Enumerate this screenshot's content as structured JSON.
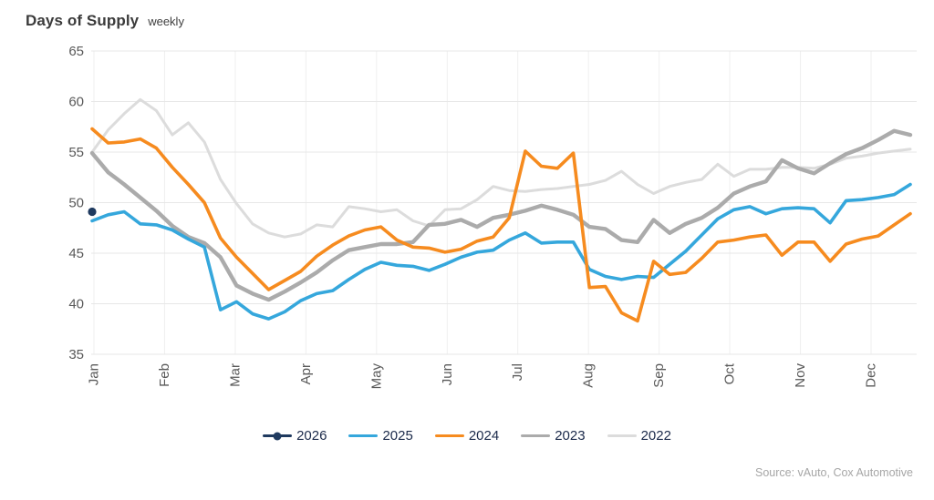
{
  "header": {
    "title": "Days of Supply",
    "subtitle": "weekly"
  },
  "source": "Source: vAuto, Cox Automotive",
  "chart_data": {
    "type": "line",
    "title": "Days of Supply",
    "subtitle": "weekly",
    "x_unit": "weeks",
    "weeks": 52,
    "x_axis": {
      "tick_labels": [
        "Jan",
        "Feb",
        "Mar",
        "Apr",
        "May",
        "Jun",
        "Jul",
        "Aug",
        "Sep",
        "Oct",
        "Nov",
        "Dec"
      ]
    },
    "y_axis": {
      "min": 35,
      "max": 65,
      "ticks": [
        65,
        60,
        55,
        50,
        45,
        40,
        35
      ]
    },
    "grid": {
      "horizontal": true,
      "vertical": true
    },
    "legend": {
      "position": "bottom",
      "labels": [
        "2026",
        "2025",
        "2024",
        "2023",
        "2022"
      ]
    },
    "series": [
      {
        "name": "2026",
        "color": "#1f3a5f",
        "marker": "circle",
        "values": [
          49.1
        ]
      },
      {
        "name": "2025",
        "color": "#35a7dc",
        "marker": "none",
        "values": [
          48.2,
          48.8,
          49.1,
          47.9,
          47.8,
          47.3,
          46.4,
          45.6,
          39.4,
          40.2,
          39.0,
          38.5,
          39.2,
          40.3,
          41.0,
          41.3,
          42.4,
          43.4,
          44.1,
          43.8,
          43.7,
          43.3,
          43.9,
          44.6,
          45.1,
          45.3,
          46.3,
          47.0,
          46.0,
          46.1,
          46.1,
          43.4,
          42.7,
          42.4,
          42.7,
          42.6,
          43.9,
          45.2,
          46.8,
          48.4,
          49.3,
          49.6,
          48.9,
          49.4,
          49.5,
          49.4,
          48.0,
          50.2,
          50.3,
          50.5,
          50.8,
          51.8
        ]
      },
      {
        "name": "2024",
        "color": "#f68b1f",
        "marker": "none",
        "values": [
          57.3,
          55.9,
          56.0,
          56.3,
          55.4,
          53.5,
          51.8,
          50.0,
          46.5,
          44.6,
          43.0,
          41.4,
          42.3,
          43.2,
          44.7,
          45.8,
          46.7,
          47.3,
          47.6,
          46.3,
          45.6,
          45.5,
          45.1,
          45.4,
          46.2,
          46.6,
          48.5,
          55.1,
          53.6,
          53.4,
          54.9,
          41.6,
          41.7,
          39.1,
          38.3,
          44.2,
          42.9,
          43.1,
          44.5,
          46.1,
          46.3,
          46.6,
          46.8,
          44.8,
          46.1,
          46.1,
          44.2,
          45.9,
          46.4,
          46.7,
          47.8,
          48.9
        ]
      },
      {
        "name": "2023",
        "color": "#ababab",
        "marker": "none",
        "values": [
          54.9,
          53.0,
          51.8,
          50.5,
          49.2,
          47.7,
          46.6,
          46.0,
          44.6,
          41.8,
          41.0,
          40.4,
          41.2,
          42.1,
          43.1,
          44.3,
          45.3,
          45.6,
          45.9,
          45.9,
          46.1,
          47.8,
          47.9,
          48.3,
          47.6,
          48.5,
          48.8,
          49.2,
          49.7,
          49.3,
          48.8,
          47.6,
          47.4,
          46.3,
          46.1,
          48.3,
          47.0,
          47.9,
          48.5,
          49.5,
          50.9,
          51.6,
          52.1,
          54.2,
          53.4,
          52.9,
          53.9,
          54.8,
          55.4,
          56.2,
          57.1,
          56.7
        ]
      },
      {
        "name": "2022",
        "color": "#dcdcdc",
        "marker": "none",
        "values": [
          55.0,
          57.2,
          58.8,
          60.2,
          59.1,
          56.7,
          57.9,
          56.0,
          52.3,
          49.9,
          47.9,
          47.0,
          46.6,
          46.9,
          47.8,
          47.6,
          49.6,
          49.4,
          49.1,
          49.3,
          48.2,
          47.7,
          49.3,
          49.4,
          50.3,
          51.6,
          51.2,
          51.1,
          51.3,
          51.4,
          51.6,
          51.8,
          52.2,
          53.1,
          51.8,
          50.9,
          51.6,
          52.0,
          52.3,
          53.8,
          52.6,
          53.3,
          53.3,
          53.5,
          53.5,
          53.4,
          53.8,
          54.4,
          54.6,
          54.9,
          55.1,
          55.3
        ]
      }
    ]
  }
}
